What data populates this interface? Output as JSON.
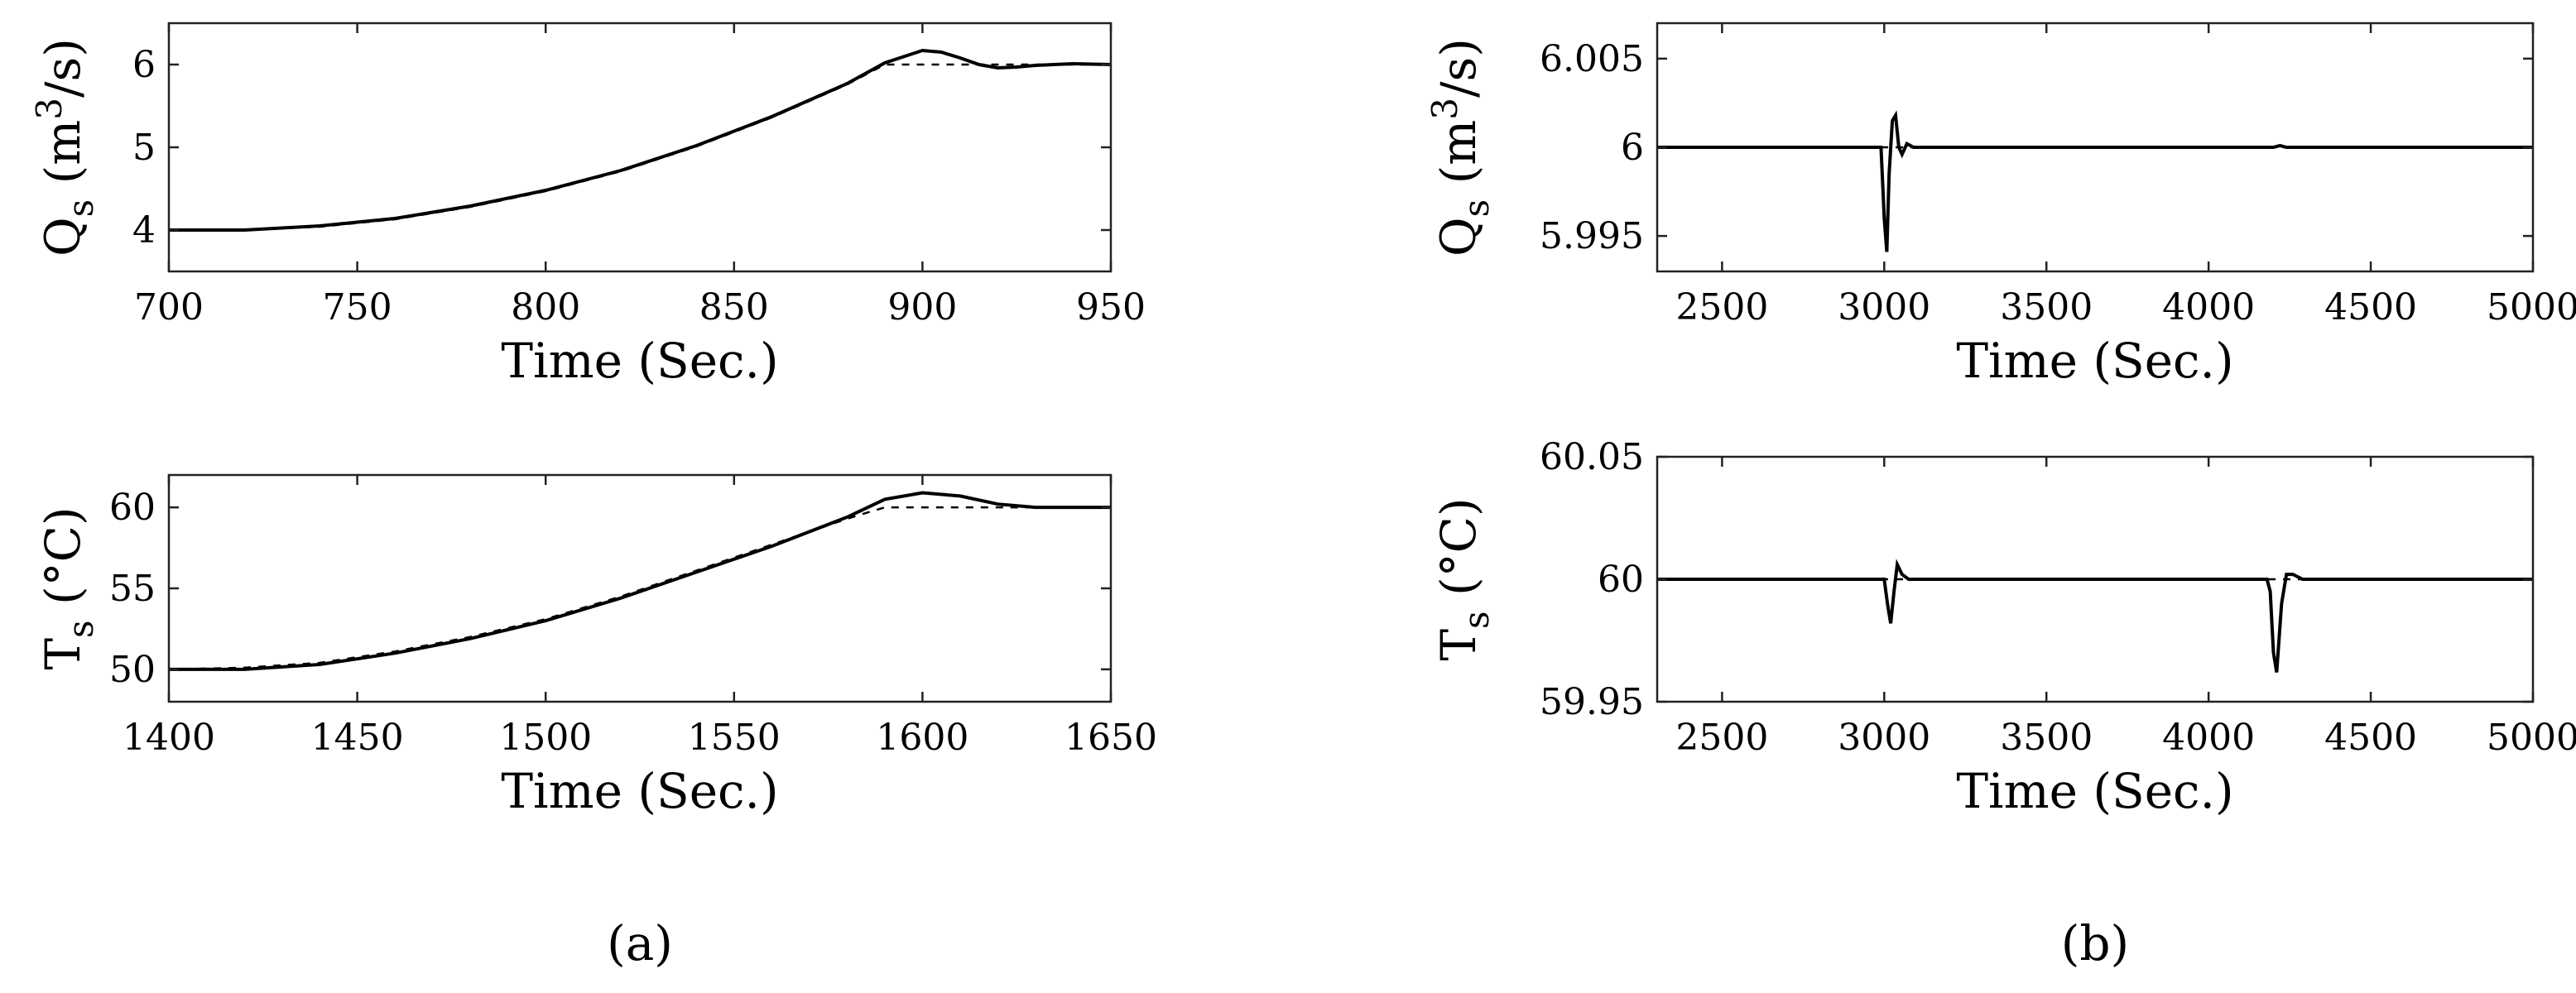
{
  "panel_labels": {
    "a": "(a)",
    "b": "(b)"
  },
  "chart_data": [
    {
      "id": "a1",
      "type": "line",
      "xlabel": "Time (Sec.)",
      "ylabel_main": "Q",
      "ylabel_sub": "s",
      "ylabel_rest": " (m",
      "ylabel_sup": "3",
      "ylabel_end": "/s)",
      "xlim": [
        700,
        950
      ],
      "ylim": [
        3.5,
        6.5
      ],
      "xticks": [
        700,
        750,
        800,
        850,
        900,
        950
      ],
      "yticks": [
        4,
        5,
        6
      ],
      "xtick_labels": [
        "700",
        "750",
        "800",
        "850",
        "900",
        "950"
      ],
      "ytick_labels": [
        "4",
        "5",
        "6"
      ],
      "series": [
        {
          "style": "solid",
          "x": [
            700,
            720,
            740,
            760,
            780,
            800,
            820,
            840,
            860,
            880,
            890,
            900,
            905,
            910,
            915,
            920,
            925,
            930,
            940,
            950
          ],
          "y": [
            4.0,
            4.0,
            4.05,
            4.14,
            4.29,
            4.48,
            4.72,
            5.02,
            5.37,
            5.77,
            6.02,
            6.17,
            6.15,
            6.08,
            6.0,
            5.96,
            5.97,
            5.99,
            6.01,
            6.0
          ]
        },
        {
          "style": "dashed",
          "x": [
            700,
            720,
            740,
            760,
            780,
            800,
            820,
            840,
            860,
            880,
            890,
            950
          ],
          "y": [
            4.0,
            4.0,
            4.04,
            4.13,
            4.28,
            4.47,
            4.71,
            5.01,
            5.36,
            5.76,
            6.0,
            6.0
          ]
        }
      ]
    },
    {
      "id": "a2",
      "type": "line",
      "xlabel": "Time (Sec.)",
      "ylabel_main": "T",
      "ylabel_sub": "s",
      "ylabel_rest": " (°C)",
      "ylabel_sup": "",
      "ylabel_end": "",
      "xlim": [
        1400,
        1650
      ],
      "ylim": [
        48,
        62
      ],
      "xticks": [
        1400,
        1450,
        1500,
        1550,
        1600,
        1650
      ],
      "yticks": [
        50,
        55,
        60
      ],
      "xtick_labels": [
        "1400",
        "1450",
        "1500",
        "1550",
        "1600",
        "1650"
      ],
      "ytick_labels": [
        "50",
        "55",
        "60"
      ],
      "series": [
        {
          "style": "solid",
          "x": [
            1400,
            1420,
            1440,
            1460,
            1480,
            1500,
            1520,
            1540,
            1560,
            1580,
            1590,
            1600,
            1610,
            1620,
            1630,
            1640,
            1650
          ],
          "y": [
            50.0,
            50.0,
            50.3,
            51.0,
            51.9,
            53.0,
            54.4,
            56.0,
            57.6,
            59.4,
            60.5,
            60.9,
            60.7,
            60.2,
            60.0,
            60.0,
            60.0
          ]
        },
        {
          "style": "dashed",
          "x": [
            1400,
            1420,
            1440,
            1460,
            1480,
            1500,
            1520,
            1540,
            1560,
            1580,
            1590,
            1650
          ],
          "y": [
            50.0,
            50.1,
            50.4,
            51.1,
            52.0,
            53.1,
            54.5,
            56.1,
            57.7,
            59.3,
            60.0,
            60.0
          ]
        }
      ]
    },
    {
      "id": "b1",
      "type": "line",
      "xlabel": "Time (Sec.)",
      "ylabel_main": "Q",
      "ylabel_sub": "s",
      "ylabel_rest": " (m",
      "ylabel_sup": "3",
      "ylabel_end": "/s)",
      "xlim": [
        2300,
        5000
      ],
      "ylim": [
        5.993,
        6.007
      ],
      "xticks": [
        2500,
        3000,
        3500,
        4000,
        4500,
        5000
      ],
      "yticks": [
        5.995,
        6.0,
        6.005
      ],
      "xtick_labels": [
        "2500",
        "3000",
        "3500",
        "4000",
        "4500",
        "5000"
      ],
      "ytick_labels": [
        "5.995",
        "6",
        "6.005"
      ],
      "series": [
        {
          "style": "solid",
          "x": [
            2300,
            2990,
            3000,
            3008,
            3015,
            3025,
            3035,
            3045,
            3055,
            3070,
            3090,
            4200,
            4220,
            4240,
            5000
          ],
          "y": [
            6.0,
            6.0,
            5.996,
            5.9941,
            5.9985,
            6.0015,
            6.0018,
            6.0,
            5.9996,
            6.0002,
            6.0,
            6.0,
            6.0001,
            6.0,
            6.0
          ]
        },
        {
          "style": "dashed",
          "x": [
            2300,
            5000
          ],
          "y": [
            6.0,
            6.0
          ]
        }
      ]
    },
    {
      "id": "b2",
      "type": "line",
      "xlabel": "Time (Sec.)",
      "ylabel_main": "T",
      "ylabel_sub": "s",
      "ylabel_rest": " (°C)",
      "ylabel_sup": "",
      "ylabel_end": "",
      "xlim": [
        2300,
        5000
      ],
      "ylim": [
        59.95,
        60.05
      ],
      "xticks": [
        2500,
        3000,
        3500,
        4000,
        4500,
        5000
      ],
      "yticks": [
        59.95,
        60.0,
        60.05
      ],
      "xtick_labels": [
        "2500",
        "3000",
        "3500",
        "4000",
        "4500",
        "5000"
      ],
      "ytick_labels": [
        "59.95",
        "60",
        "60.05"
      ],
      "series": [
        {
          "style": "solid",
          "x": [
            2300,
            3000,
            3010,
            3020,
            3030,
            3040,
            3055,
            3075,
            4180,
            4190,
            4200,
            4210,
            4225,
            4240,
            4260,
            4290,
            5000
          ],
          "y": [
            60.0,
            60.0,
            59.99,
            59.982,
            59.995,
            60.006,
            60.002,
            60.0,
            60.0,
            59.995,
            59.97,
            59.962,
            59.99,
            60.002,
            60.002,
            60.0,
            60.0
          ]
        },
        {
          "style": "dashed",
          "x": [
            2300,
            5000
          ],
          "y": [
            60.0,
            60.0
          ]
        }
      ]
    }
  ]
}
